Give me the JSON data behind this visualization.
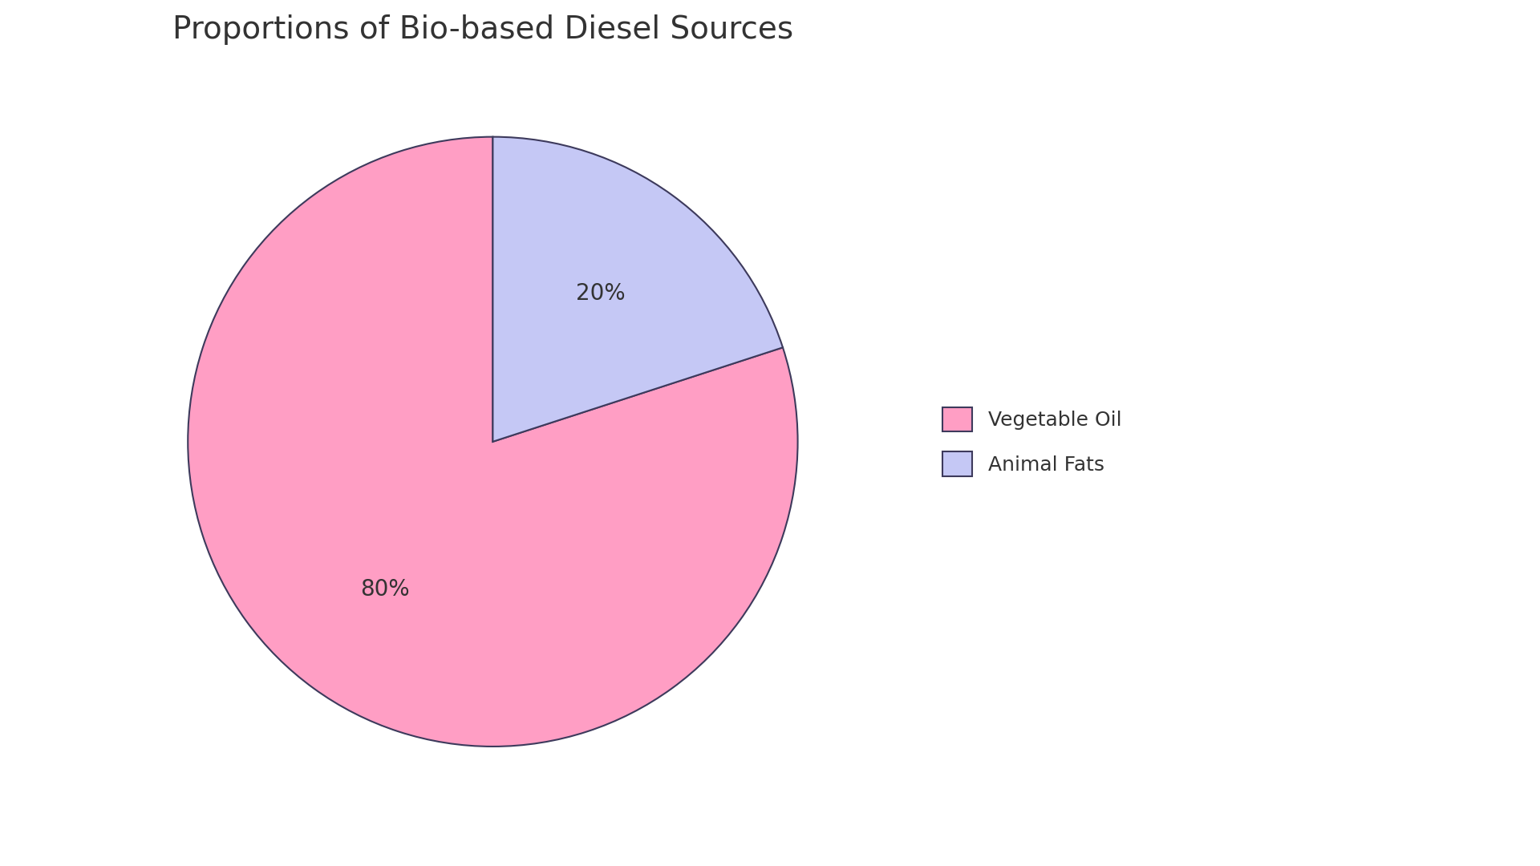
{
  "title": "Proportions of Bio-based Diesel Sources",
  "labels": [
    "Vegetable Oil",
    "Animal Fats"
  ],
  "values": [
    80,
    20
  ],
  "colors": [
    "#FF9EC4",
    "#C5C8F5"
  ],
  "edge_color": "#3D3A5C",
  "edge_width": 1.5,
  "autopct_fontsize": 20,
  "title_fontsize": 28,
  "legend_fontsize": 18,
  "background_color": "#FFFFFF",
  "startangle": 90,
  "text_color": "#333333",
  "pct_distance": 0.6
}
